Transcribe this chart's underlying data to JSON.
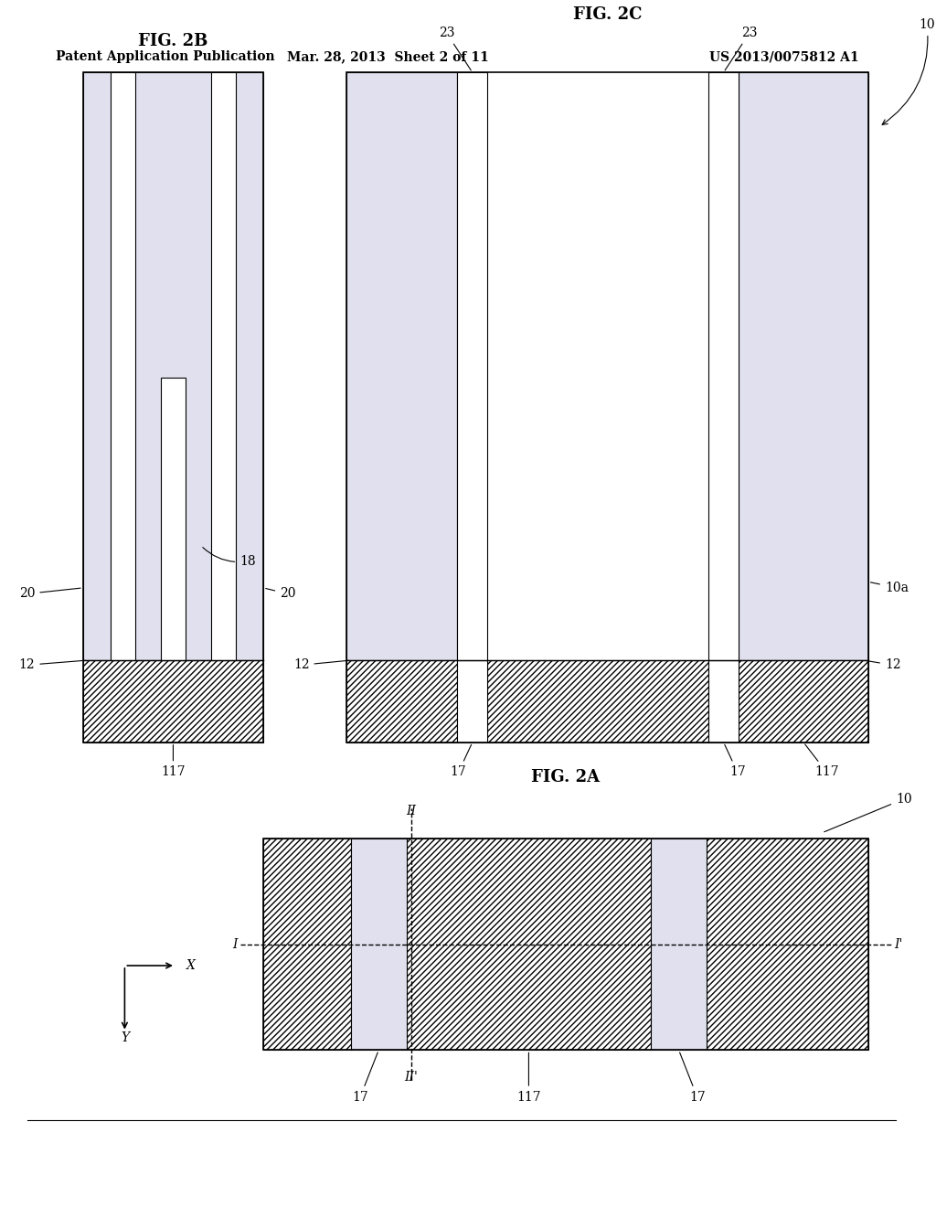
{
  "header_left": "Patent Application Publication",
  "header_mid": "Mar. 28, 2013  Sheet 2 of 11",
  "header_right": "US 2013/0075812 A1",
  "bg_color": "#ffffff",
  "light_fill": "#e0e0ee"
}
